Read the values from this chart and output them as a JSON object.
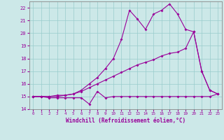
{
  "xlabel": "Windchill (Refroidissement éolien,°C)",
  "background_color": "#cce8e8",
  "grid_color": "#99cccc",
  "line_color": "#990099",
  "spine_color": "#888888",
  "xlim": [
    -0.5,
    23.5
  ],
  "ylim": [
    14,
    22.5
  ],
  "xticks": [
    0,
    1,
    2,
    3,
    4,
    5,
    6,
    7,
    8,
    9,
    10,
    11,
    12,
    13,
    14,
    15,
    16,
    17,
    18,
    19,
    20,
    21,
    22,
    23
  ],
  "yticks": [
    14,
    15,
    16,
    17,
    18,
    19,
    20,
    21,
    22
  ],
  "series1_x": [
    0,
    1,
    2,
    3,
    4,
    5,
    6,
    7,
    8,
    9,
    10,
    11,
    12,
    13,
    14,
    15,
    16,
    17,
    18,
    19,
    20,
    21,
    22,
    23
  ],
  "series1_y": [
    15.0,
    15.0,
    14.9,
    14.9,
    14.9,
    14.9,
    14.9,
    14.4,
    15.4,
    14.9,
    15.0,
    15.0,
    15.0,
    15.0,
    15.0,
    15.0,
    15.0,
    15.0,
    15.0,
    15.0,
    15.0,
    15.0,
    15.0,
    15.2
  ],
  "series2_x": [
    0,
    1,
    2,
    3,
    4,
    5,
    6,
    7,
    8,
    9,
    10,
    11,
    12,
    13,
    14,
    15,
    16,
    17,
    18,
    19,
    20,
    21,
    22,
    23
  ],
  "series2_y": [
    15.0,
    15.0,
    15.0,
    15.1,
    15.1,
    15.2,
    15.4,
    15.7,
    16.0,
    16.3,
    16.6,
    16.9,
    17.2,
    17.5,
    17.7,
    17.9,
    18.2,
    18.4,
    18.5,
    18.8,
    20.1,
    17.0,
    15.5,
    15.2
  ],
  "series3_x": [
    0,
    1,
    2,
    3,
    4,
    5,
    6,
    7,
    8,
    9,
    10,
    11,
    12,
    13,
    14,
    15,
    16,
    17,
    18,
    19,
    20,
    21,
    22,
    23
  ],
  "series3_y": [
    15.0,
    15.0,
    15.0,
    15.0,
    15.1,
    15.2,
    15.5,
    16.0,
    16.5,
    17.2,
    18.0,
    19.5,
    21.8,
    21.1,
    20.3,
    21.5,
    21.8,
    22.3,
    21.5,
    20.3,
    20.1,
    17.0,
    15.5,
    15.2
  ]
}
